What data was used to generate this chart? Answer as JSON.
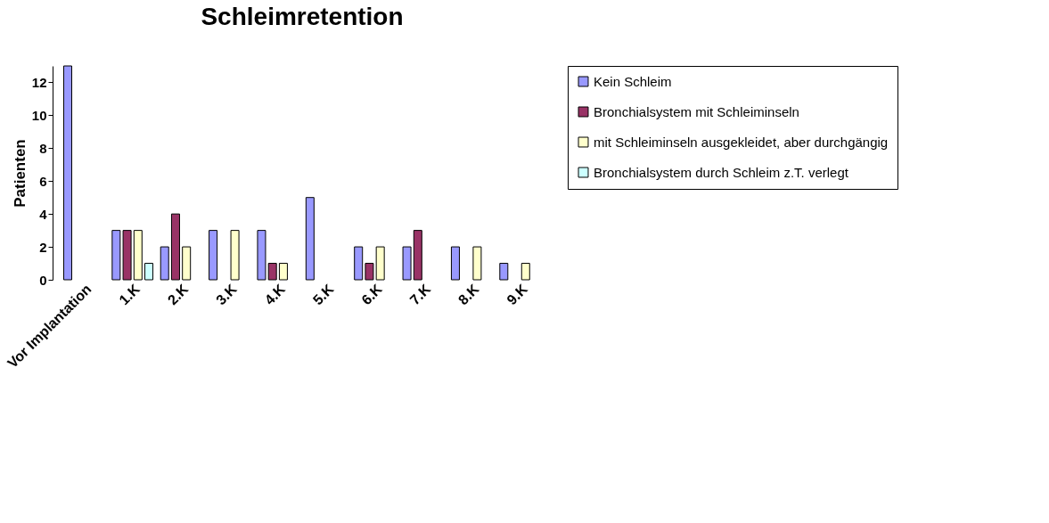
{
  "chart_data": {
    "type": "bar",
    "title": "Schleimretention",
    "ylabel": "Patienten",
    "categories": [
      "Vor Implantation",
      "1.K",
      "2.K",
      "3.K",
      "4.K",
      "5.K",
      "6.K",
      "7.K",
      "8.K",
      "9.K"
    ],
    "series": [
      {
        "name": "Kein Schleim",
        "color": "#9999ff",
        "values": [
          13,
          3,
          2,
          3,
          3,
          5,
          2,
          2,
          2,
          1
        ]
      },
      {
        "name": "Bronchialsystem mit Schleiminseln",
        "color": "#993366",
        "values": [
          null,
          3,
          4,
          null,
          1,
          null,
          1,
          3,
          null,
          null
        ]
      },
      {
        "name": "mit Schleiminseln ausgekleidet, aber durchgängig",
        "color": "#ffffcc",
        "values": [
          null,
          3,
          2,
          3,
          1,
          null,
          2,
          null,
          2,
          1
        ]
      },
      {
        "name": "Bronchialsystem durch Schleim z.T. verlegt",
        "color": "#ccffff",
        "values": [
          null,
          1,
          null,
          null,
          null,
          null,
          null,
          null,
          null,
          null
        ]
      }
    ],
    "ylim": [
      0,
      13
    ],
    "yticks": [
      0,
      2,
      4,
      6,
      8,
      10,
      12
    ],
    "grid": false,
    "legend": "right"
  }
}
